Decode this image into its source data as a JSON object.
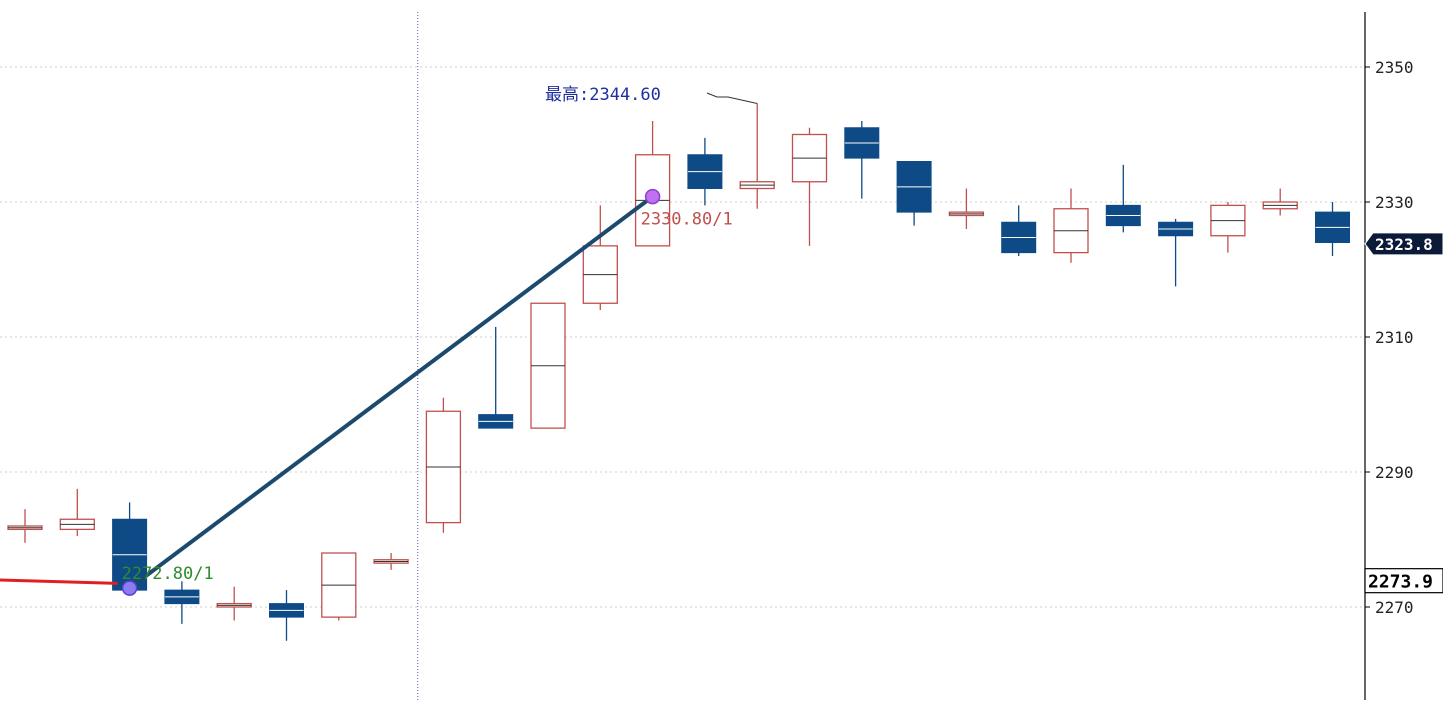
{
  "chart_data": {
    "type": "candlestick",
    "y_axis": {
      "ticks": [
        {
          "value": 2270,
          "label": "2270"
        },
        {
          "value": 2290,
          "label": "2290"
        },
        {
          "value": 2310,
          "label": "2310"
        },
        {
          "value": 2330,
          "label": "2330"
        },
        {
          "value": 2350,
          "label": "2350"
        }
      ],
      "ylim": [
        2258.5,
        2360.5
      ],
      "position": "right",
      "grid": "dotted"
    },
    "colors": {
      "up": "#c0504d",
      "down": "#0e4a86",
      "trendline": "#1c4a6e",
      "ma_line": "#e02020",
      "grid": "#cccccc",
      "marker": "#a070ff",
      "highlight_label": "#1f2f9f",
      "start_label": "#2e8b2e"
    },
    "candles": [
      {
        "open": 2281.5,
        "high": 2284.5,
        "low": 2279.5,
        "close": 2282.0
      },
      {
        "open": 2281.5,
        "high": 2287.5,
        "low": 2280.5,
        "close": 2283.0
      },
      {
        "open": 2283.0,
        "high": 2285.5,
        "low": 2272.0,
        "close": 2272.5
      },
      {
        "open": 2272.5,
        "high": 2273.8,
        "low": 2267.5,
        "close": 2270.5
      },
      {
        "open": 2270.0,
        "high": 2273.0,
        "low": 2268.0,
        "close": 2270.5
      },
      {
        "open": 2270.5,
        "high": 2272.5,
        "low": 2265.0,
        "close": 2268.5
      },
      {
        "open": 2268.5,
        "high": 2278.0,
        "low": 2268.0,
        "close": 2278.0
      },
      {
        "open": 2276.5,
        "high": 2278.0,
        "low": 2275.5,
        "close": 2277.0
      },
      {
        "open": 2282.5,
        "high": 2301.0,
        "low": 2281.0,
        "close": 2299.0
      },
      {
        "open": 2298.5,
        "high": 2311.5,
        "low": 2296.5,
        "close": 2296.5
      },
      {
        "open": 2296.5,
        "high": 2315.0,
        "low": 2296.5,
        "close": 2315.0
      },
      {
        "open": 2315.0,
        "high": 2329.5,
        "low": 2314.0,
        "close": 2323.5
      },
      {
        "open": 2323.5,
        "high": 2342.0,
        "low": 2323.5,
        "close": 2337.0
      },
      {
        "open": 2337.0,
        "high": 2339.5,
        "low": 2329.5,
        "close": 2332.0
      },
      {
        "open": 2332.0,
        "high": 2344.6,
        "low": 2329.0,
        "close": 2333.0
      },
      {
        "open": 2333.0,
        "high": 2341.0,
        "low": 2323.5,
        "close": 2340.0
      },
      {
        "open": 2341.0,
        "high": 2342.0,
        "low": 2330.5,
        "close": 2336.5
      },
      {
        "open": 2336.0,
        "high": 2336.0,
        "low": 2326.5,
        "close": 2328.5
      },
      {
        "open": 2328.0,
        "high": 2332.0,
        "low": 2326.0,
        "close": 2328.5
      },
      {
        "open": 2327.0,
        "high": 2329.5,
        "low": 2322.0,
        "close": 2322.5
      },
      {
        "open": 2322.5,
        "high": 2332.0,
        "low": 2321.0,
        "close": 2329.0
      },
      {
        "open": 2329.5,
        "high": 2335.5,
        "low": 2325.5,
        "close": 2326.5
      },
      {
        "open": 2327.0,
        "high": 2327.5,
        "low": 2317.5,
        "close": 2325.0
      },
      {
        "open": 2325.0,
        "high": 2330.0,
        "low": 2322.5,
        "close": 2329.5
      },
      {
        "open": 2329.0,
        "high": 2332.0,
        "low": 2328.0,
        "close": 2330.0
      },
      {
        "open": 2328.5,
        "high": 2330.0,
        "low": 2322.0,
        "close": 2324.0
      }
    ],
    "ma_segment": {
      "from_value": 2274.0,
      "to_value": 2273.5,
      "to_index": 2
    },
    "trendline": {
      "start": {
        "index": 2,
        "value": 2272.8,
        "label": "2272.80/1"
      },
      "end": {
        "index": 12,
        "value": 2330.8,
        "label": "2330.80/1"
      }
    },
    "max_annotation": {
      "index": 14,
      "value": 2344.6,
      "label": "最高:2344.60"
    },
    "separator_after_index": 7,
    "price_tags": [
      {
        "value": 2323.8,
        "label": "2323.8",
        "style": "dark"
      },
      {
        "value": 2273.9,
        "label": "2273.9",
        "style": "light"
      }
    ]
  }
}
